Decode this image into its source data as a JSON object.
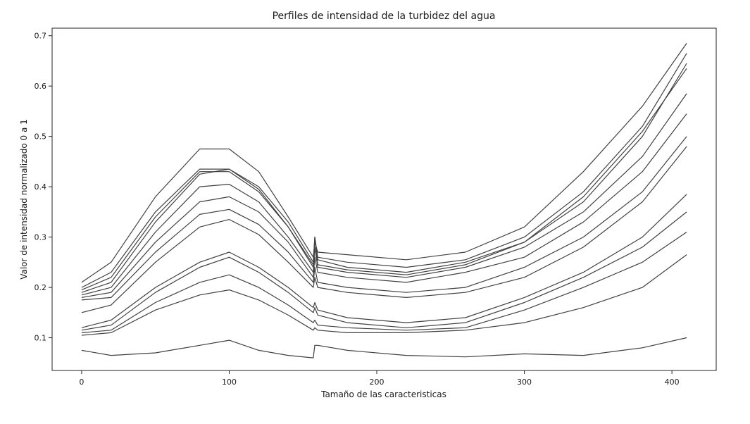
{
  "chart_data": {
    "type": "line",
    "title": "Perfiles de intensidad de la turbidez del agua",
    "xlabel": "Tamaño de las caracteristicas",
    "ylabel": "Valor de intensidad normalizado 0 a 1",
    "xlim": [
      -20,
      430
    ],
    "ylim": [
      0.035,
      0.715
    ],
    "xticks": [
      0,
      100,
      200,
      300,
      400
    ],
    "yticks": [
      0.1,
      0.2,
      0.3,
      0.4,
      0.5,
      0.6,
      0.7
    ],
    "xtick_labels": [
      "0",
      "100",
      "200",
      "300",
      "400"
    ],
    "ytick_labels": [
      "0.1",
      "0.2",
      "0.3",
      "0.4",
      "0.5",
      "0.6",
      "0.7"
    ],
    "grid": false,
    "line_color": "#404040",
    "series": [
      {
        "x": [
          0,
          20,
          50,
          80,
          100,
          120,
          140,
          157,
          158,
          160,
          180,
          220,
          260,
          300,
          340,
          380,
          410
        ],
        "y": [
          0.21,
          0.25,
          0.38,
          0.475,
          0.475,
          0.43,
          0.34,
          0.26,
          0.29,
          0.27,
          0.265,
          0.255,
          0.27,
          0.32,
          0.43,
          0.56,
          0.685
        ]
      },
      {
        "x": [
          0,
          20,
          50,
          80,
          100,
          120,
          140,
          157,
          158,
          160,
          180,
          220,
          260,
          300,
          340,
          380,
          410
        ],
        "y": [
          0.2,
          0.23,
          0.35,
          0.435,
          0.435,
          0.4,
          0.33,
          0.25,
          0.3,
          0.26,
          0.25,
          0.24,
          0.255,
          0.3,
          0.39,
          0.52,
          0.665
        ]
      },
      {
        "x": [
          0,
          20,
          50,
          80,
          100,
          120,
          140,
          157,
          158,
          160,
          180,
          220,
          260,
          300,
          340,
          380,
          410
        ],
        "y": [
          0.195,
          0.22,
          0.34,
          0.43,
          0.43,
          0.39,
          0.32,
          0.245,
          0.3,
          0.255,
          0.24,
          0.23,
          0.25,
          0.29,
          0.37,
          0.5,
          0.645
        ]
      },
      {
        "x": [
          0,
          20,
          50,
          80,
          100,
          120,
          140,
          157,
          158,
          160,
          180,
          220,
          260,
          300,
          340,
          380,
          410
        ],
        "y": [
          0.19,
          0.21,
          0.33,
          0.425,
          0.435,
          0.395,
          0.32,
          0.24,
          0.3,
          0.245,
          0.235,
          0.225,
          0.245,
          0.29,
          0.38,
          0.51,
          0.635
        ]
      },
      {
        "x": [
          0,
          20,
          50,
          80,
          100,
          120,
          140,
          157,
          158,
          160,
          180,
          220,
          260,
          300,
          340,
          380,
          410
        ],
        "y": [
          0.185,
          0.2,
          0.31,
          0.4,
          0.405,
          0.37,
          0.3,
          0.23,
          0.28,
          0.24,
          0.23,
          0.22,
          0.24,
          0.28,
          0.35,
          0.46,
          0.585
        ]
      },
      {
        "x": [
          0,
          20,
          50,
          80,
          100,
          120,
          140,
          157,
          158,
          160,
          180,
          220,
          260,
          300,
          340,
          380,
          410
        ],
        "y": [
          0.18,
          0.19,
          0.29,
          0.37,
          0.38,
          0.35,
          0.29,
          0.22,
          0.26,
          0.23,
          0.22,
          0.21,
          0.23,
          0.26,
          0.33,
          0.43,
          0.545
        ]
      },
      {
        "x": [
          0,
          20,
          50,
          80,
          100,
          120,
          140,
          157,
          158,
          160,
          180,
          220,
          260,
          300,
          340,
          380,
          410
        ],
        "y": [
          0.175,
          0.18,
          0.27,
          0.345,
          0.355,
          0.325,
          0.27,
          0.21,
          0.24,
          0.21,
          0.2,
          0.19,
          0.2,
          0.24,
          0.3,
          0.39,
          0.5
        ]
      },
      {
        "x": [
          0,
          20,
          50,
          80,
          100,
          120,
          140,
          157,
          158,
          160,
          180,
          220,
          260,
          300,
          340,
          380,
          410
        ],
        "y": [
          0.15,
          0.165,
          0.25,
          0.32,
          0.335,
          0.305,
          0.25,
          0.2,
          0.22,
          0.2,
          0.19,
          0.18,
          0.19,
          0.22,
          0.28,
          0.37,
          0.48
        ]
      },
      {
        "x": [
          0,
          20,
          50,
          80,
          100,
          120,
          140,
          157,
          158,
          160,
          180,
          220,
          260,
          300,
          340,
          380,
          410
        ],
        "y": [
          0.12,
          0.135,
          0.2,
          0.25,
          0.27,
          0.24,
          0.2,
          0.16,
          0.17,
          0.155,
          0.14,
          0.13,
          0.14,
          0.18,
          0.23,
          0.3,
          0.385
        ]
      },
      {
        "x": [
          0,
          20,
          50,
          80,
          100,
          120,
          140,
          157,
          158,
          160,
          180,
          220,
          260,
          300,
          340,
          380,
          410
        ],
        "y": [
          0.115,
          0.125,
          0.19,
          0.24,
          0.26,
          0.23,
          0.19,
          0.15,
          0.16,
          0.145,
          0.13,
          0.12,
          0.13,
          0.17,
          0.22,
          0.28,
          0.35
        ]
      },
      {
        "x": [
          0,
          20,
          50,
          80,
          100,
          120,
          140,
          157,
          158,
          160,
          180,
          220,
          260,
          300,
          340,
          380,
          410
        ],
        "y": [
          0.11,
          0.115,
          0.17,
          0.21,
          0.225,
          0.2,
          0.165,
          0.13,
          0.135,
          0.125,
          0.12,
          0.115,
          0.12,
          0.155,
          0.2,
          0.25,
          0.31
        ]
      },
      {
        "x": [
          0,
          20,
          50,
          80,
          100,
          120,
          140,
          157,
          158,
          160,
          180,
          220,
          260,
          300,
          340,
          380,
          410
        ],
        "y": [
          0.105,
          0.11,
          0.155,
          0.185,
          0.195,
          0.175,
          0.145,
          0.115,
          0.12,
          0.115,
          0.11,
          0.11,
          0.115,
          0.13,
          0.16,
          0.2,
          0.265
        ]
      },
      {
        "x": [
          0,
          20,
          50,
          80,
          100,
          120,
          140,
          157,
          158,
          160,
          180,
          220,
          260,
          300,
          340,
          380,
          410
        ],
        "y": [
          0.075,
          0.065,
          0.07,
          0.085,
          0.095,
          0.075,
          0.065,
          0.06,
          0.085,
          0.085,
          0.075,
          0.065,
          0.062,
          0.068,
          0.065,
          0.08,
          0.1
        ]
      }
    ]
  }
}
